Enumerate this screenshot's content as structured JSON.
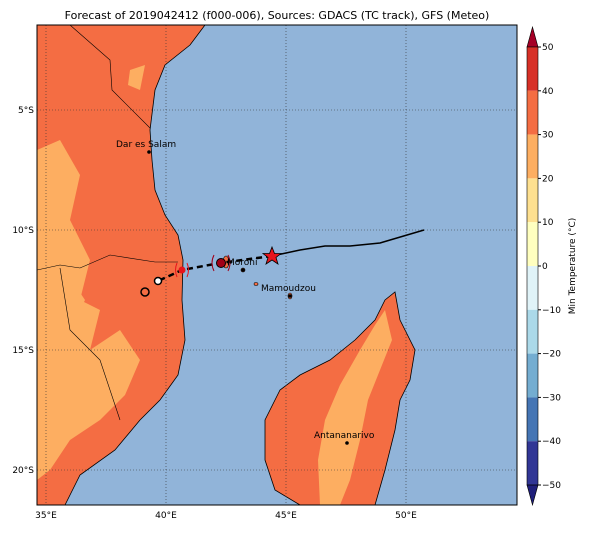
{
  "title": "Forecast of 2019042412 (f000-006), Sources: GDACS (TC track), GFS (Meteo)",
  "map": {
    "lon_labels": [
      "35°E",
      "40°E",
      "45°E",
      "50°E"
    ],
    "lat_labels": [
      "5°S",
      "10°S",
      "15°S",
      "20°S"
    ],
    "cities": [
      "Dar es Salam",
      "Moroni",
      "Mamoudzou",
      "Antananarivo"
    ]
  },
  "colorbar": {
    "label": "Min Temperature (°C)",
    "tick_labels": [
      "50",
      "40",
      "30",
      "20",
      "10",
      "0",
      "−10",
      "−20",
      "−30",
      "−40",
      "−50"
    ]
  }
}
